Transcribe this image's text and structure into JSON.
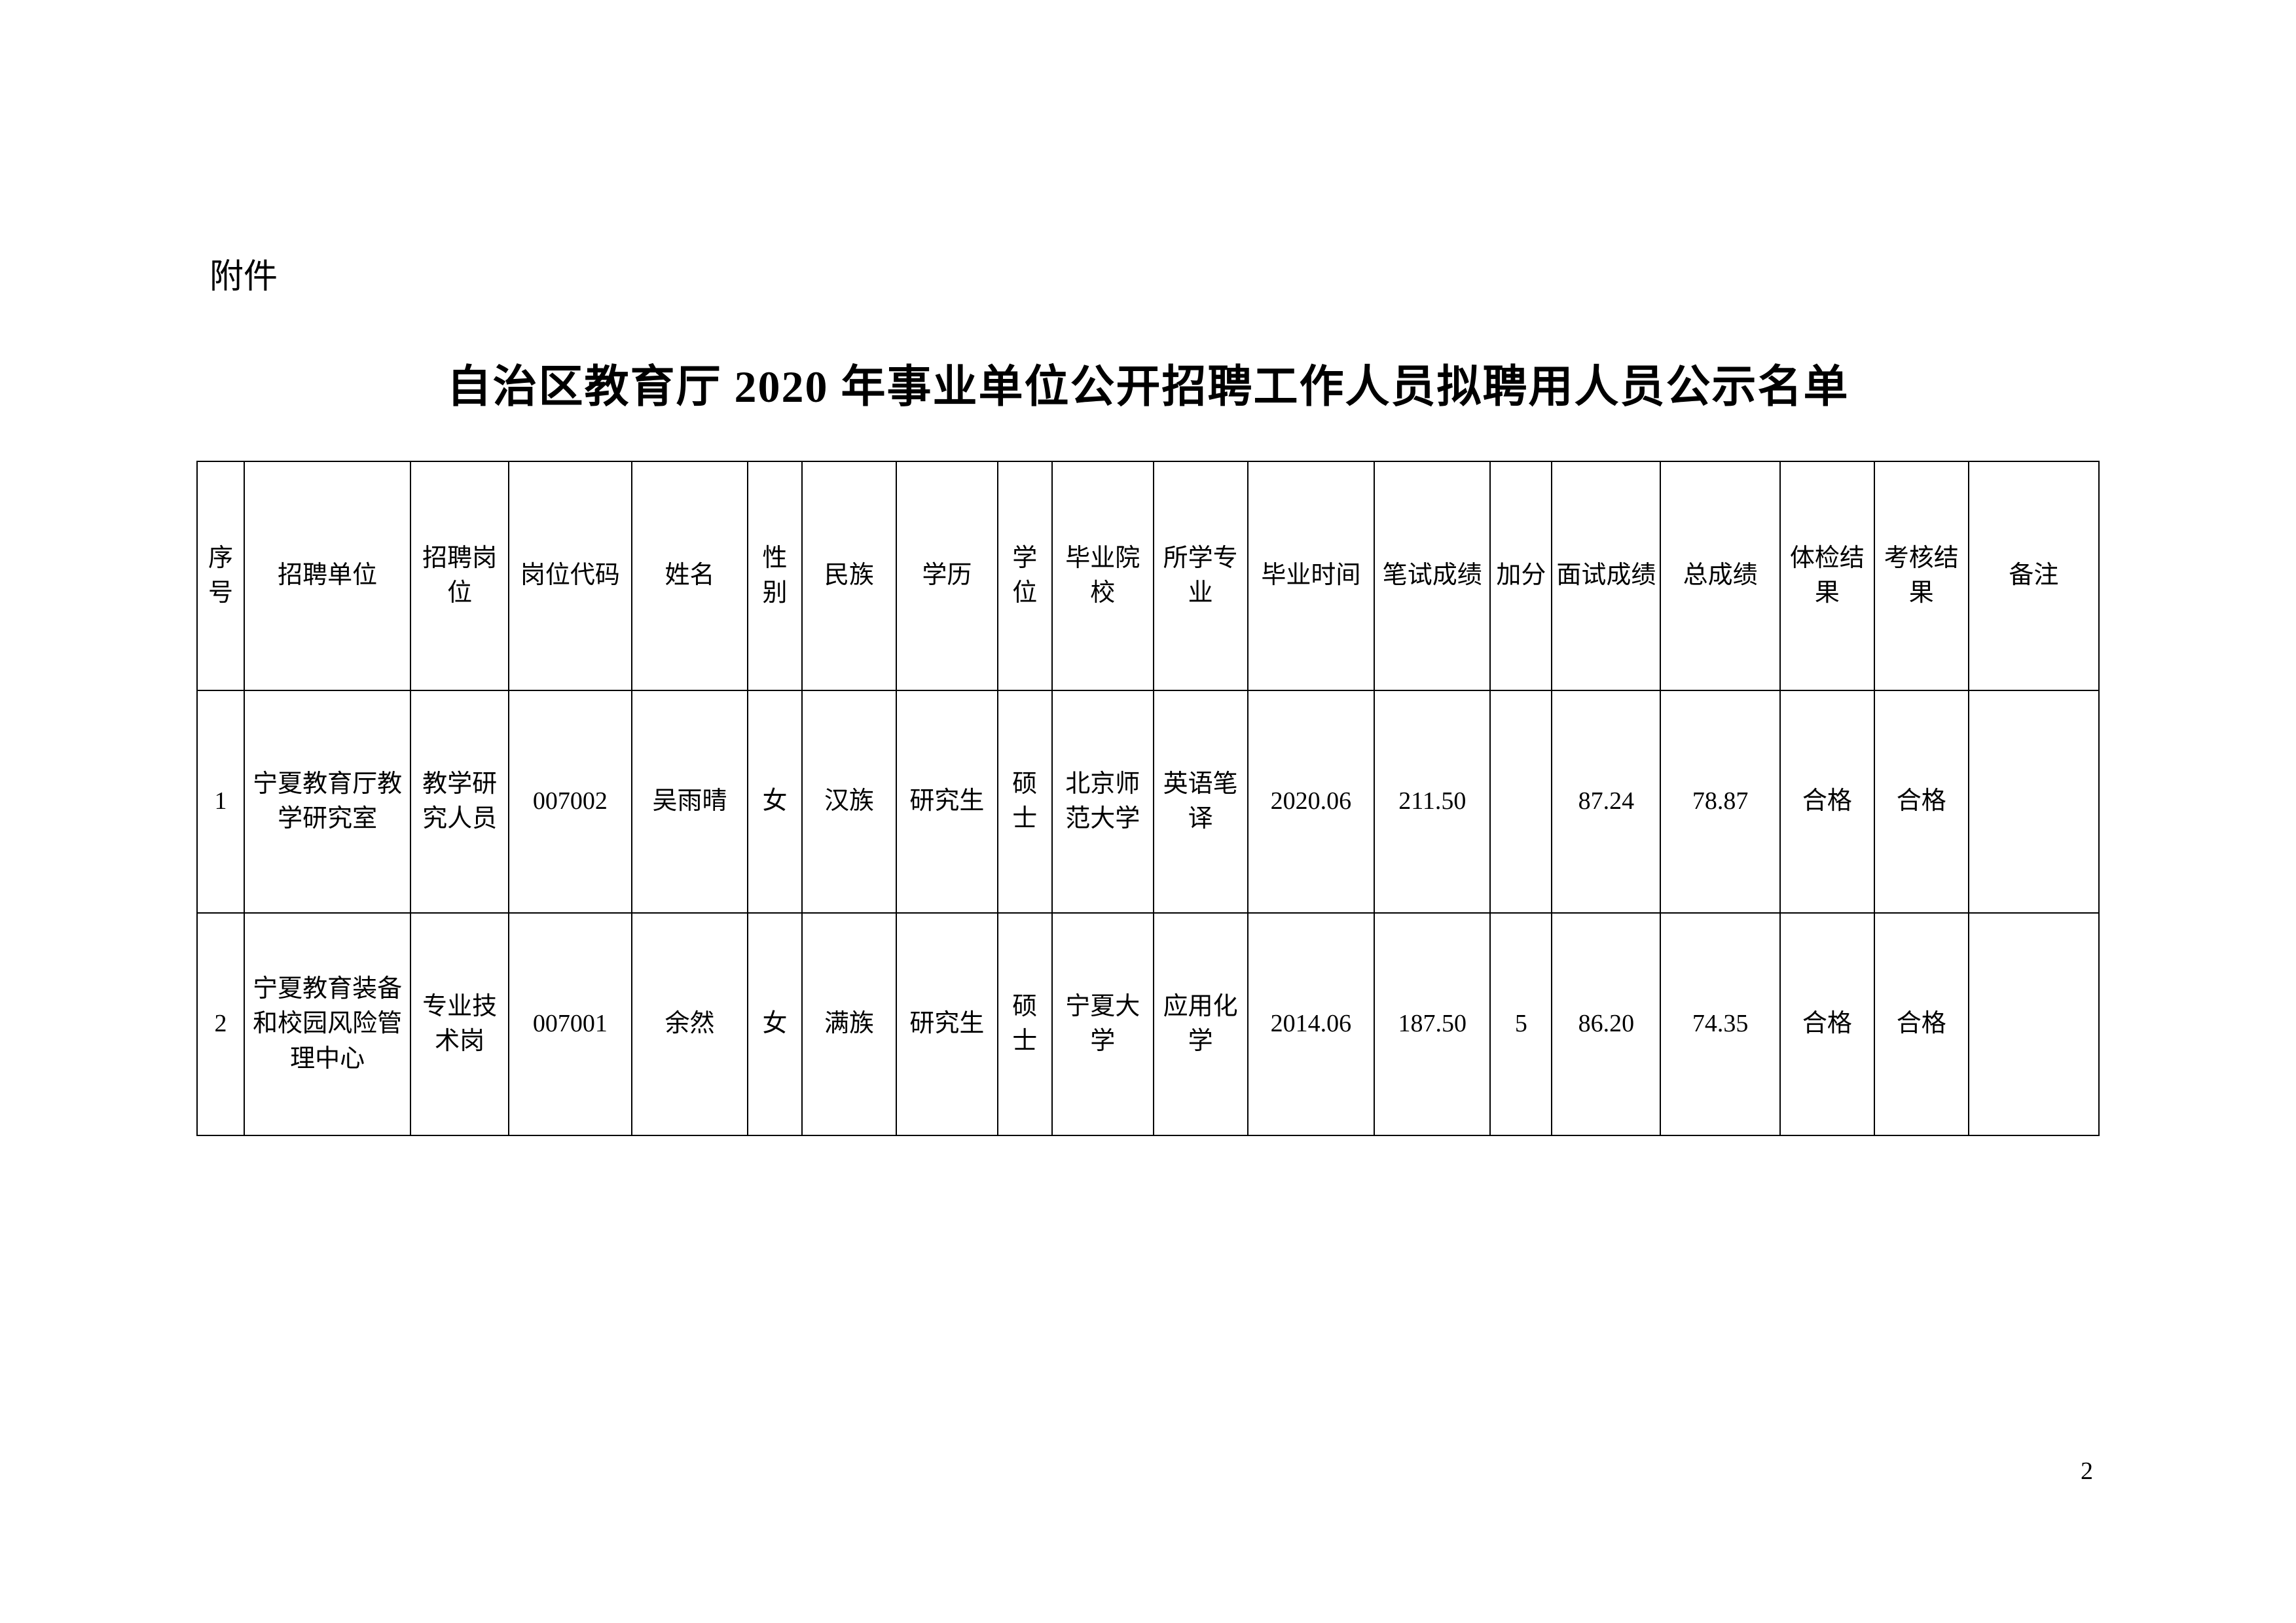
{
  "attachment_label": "附件",
  "title": "自治区教育厅 2020 年事业单位公开招聘工作人员拟聘用人员公示名单",
  "page_number": "2",
  "table": {
    "columns": [
      "序号",
      "招聘单位",
      "招聘岗位",
      "岗位代码",
      "姓名",
      "性别",
      "民族",
      "学历",
      "学位",
      "毕业院校",
      "所学专业",
      "毕业时间",
      "笔试成绩",
      "加分",
      "面试成绩",
      "总成绩",
      "体检结果",
      "考核结果",
      "备注"
    ],
    "rows": [
      {
        "seq": "1",
        "unit": "宁夏教育厅教学研究室",
        "position": "教学研究人员",
        "code": "007002",
        "name": "吴雨晴",
        "gender": "女",
        "ethnic": "汉族",
        "education": "研究生",
        "degree": "硕士",
        "school": "北京师范大学",
        "major": "英语笔译",
        "grad_time": "2020.06",
        "written_score": "211.50",
        "bonus": "",
        "interview_score": "87.24",
        "total_score": "78.87",
        "physical_result": "合格",
        "assess_result": "合格",
        "remark": ""
      },
      {
        "seq": "2",
        "unit": "宁夏教育装备和校园风险管理中心",
        "position": "专业技术岗",
        "code": "007001",
        "name": "余然",
        "gender": "女",
        "ethnic": "满族",
        "education": "研究生",
        "degree": "硕士",
        "school": "宁夏大学",
        "major": "应用化学",
        "grad_time": "2014.06",
        "written_score": "187.50",
        "bonus": "5",
        "interview_score": "86.20",
        "total_score": "74.35",
        "physical_result": "合格",
        "assess_result": "合格",
        "remark": ""
      }
    ]
  }
}
